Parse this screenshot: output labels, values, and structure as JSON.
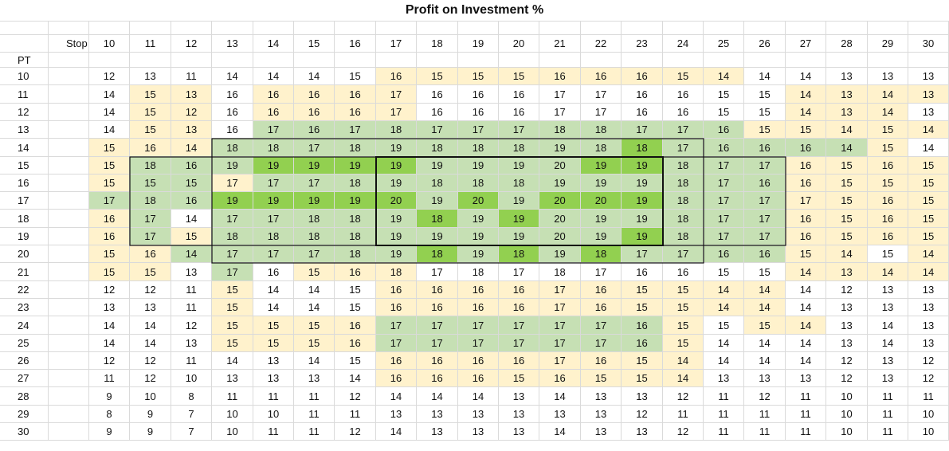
{
  "sheet": {
    "title": "Profit on Investment %",
    "stop_header": "Stop",
    "pt_header": "PT"
  },
  "palette": {
    "none": "#ffffff",
    "cream": "#fff2cc",
    "light_green": "#c6e0b4",
    "green": "#92d050",
    "grid": "#dadada"
  },
  "chart_data": {
    "type": "heatmap",
    "title": "Profit on Investment %",
    "xlabel": "Stop",
    "ylabel": "PT",
    "x": [
      10,
      11,
      12,
      13,
      14,
      15,
      16,
      17,
      18,
      19,
      20,
      21,
      22,
      23,
      24,
      25,
      26,
      27,
      28,
      29,
      30
    ],
    "y": [
      10,
      11,
      12,
      13,
      14,
      15,
      16,
      17,
      18,
      19,
      20,
      21,
      22,
      23,
      24,
      25,
      26,
      27,
      28,
      29,
      30
    ],
    "values": [
      [
        12,
        13,
        11,
        14,
        14,
        14,
        15,
        16,
        15,
        15,
        15,
        16,
        16,
        16,
        15,
        14,
        14,
        14,
        13,
        13,
        13
      ],
      [
        14,
        15,
        13,
        16,
        16,
        16,
        16,
        17,
        16,
        16,
        16,
        17,
        17,
        16,
        16,
        15,
        15,
        14,
        13,
        14,
        13
      ],
      [
        14,
        15,
        12,
        16,
        16,
        16,
        16,
        17,
        16,
        16,
        16,
        17,
        17,
        16,
        16,
        15,
        15,
        14,
        13,
        14,
        13
      ],
      [
        14,
        15,
        13,
        16,
        17,
        16,
        17,
        18,
        17,
        17,
        17,
        18,
        18,
        17,
        17,
        16,
        15,
        15,
        14,
        15,
        14
      ],
      [
        15,
        16,
        14,
        18,
        18,
        17,
        18,
        19,
        18,
        18,
        18,
        19,
        18,
        18,
        17,
        16,
        16,
        16,
        14,
        15,
        14
      ],
      [
        15,
        18,
        16,
        19,
        19,
        19,
        19,
        19,
        19,
        19,
        19,
        20,
        19,
        19,
        18,
        17,
        17,
        16,
        15,
        16,
        15
      ],
      [
        15,
        15,
        15,
        17,
        17,
        17,
        18,
        19,
        18,
        18,
        18,
        19,
        19,
        19,
        18,
        17,
        16,
        16,
        15,
        15,
        15
      ],
      [
        17,
        18,
        16,
        19,
        19,
        19,
        19,
        20,
        19,
        20,
        19,
        20,
        20,
        19,
        18,
        17,
        17,
        17,
        15,
        16,
        15
      ],
      [
        16,
        17,
        14,
        17,
        17,
        18,
        18,
        19,
        18,
        19,
        19,
        20,
        19,
        19,
        18,
        17,
        17,
        16,
        15,
        16,
        15
      ],
      [
        16,
        17,
        15,
        18,
        18,
        18,
        18,
        19,
        19,
        19,
        19,
        20,
        19,
        19,
        18,
        17,
        17,
        16,
        15,
        16,
        15
      ],
      [
        15,
        16,
        14,
        17,
        17,
        17,
        18,
        19,
        18,
        19,
        18,
        19,
        18,
        17,
        17,
        16,
        16,
        15,
        14,
        15,
        14
      ],
      [
        15,
        15,
        13,
        17,
        16,
        15,
        16,
        18,
        17,
        18,
        17,
        18,
        17,
        16,
        16,
        15,
        15,
        14,
        13,
        14,
        14
      ],
      [
        12,
        12,
        11,
        15,
        14,
        14,
        15,
        16,
        16,
        16,
        16,
        17,
        16,
        15,
        15,
        14,
        14,
        14,
        12,
        13,
        13
      ],
      [
        13,
        13,
        11,
        15,
        14,
        14,
        15,
        16,
        16,
        16,
        16,
        17,
        16,
        15,
        15,
        14,
        14,
        14,
        13,
        13,
        13
      ],
      [
        14,
        14,
        12,
        15,
        15,
        15,
        16,
        17,
        17,
        17,
        17,
        17,
        17,
        16,
        15,
        15,
        15,
        14,
        13,
        14,
        13
      ],
      [
        14,
        14,
        13,
        15,
        15,
        15,
        16,
        17,
        17,
        17,
        17,
        17,
        17,
        16,
        15,
        14,
        14,
        14,
        13,
        14,
        13
      ],
      [
        12,
        12,
        11,
        14,
        13,
        14,
        15,
        16,
        16,
        16,
        16,
        17,
        16,
        15,
        14,
        14,
        14,
        14,
        12,
        13,
        12
      ],
      [
        11,
        12,
        10,
        13,
        13,
        13,
        14,
        16,
        16,
        16,
        15,
        16,
        15,
        15,
        14,
        13,
        13,
        13,
        12,
        13,
        12
      ],
      [
        9,
        10,
        8,
        11,
        11,
        11,
        12,
        14,
        14,
        14,
        13,
        14,
        13,
        13,
        12,
        11,
        12,
        11,
        10,
        11,
        11
      ],
      [
        8,
        9,
        7,
        10,
        10,
        11,
        11,
        13,
        13,
        13,
        13,
        13,
        13,
        12,
        11,
        11,
        11,
        11,
        10,
        11,
        10
      ],
      [
        9,
        9,
        7,
        10,
        11,
        11,
        12,
        14,
        13,
        13,
        13,
        14,
        13,
        13,
        12,
        11,
        11,
        11,
        10,
        11,
        10
      ]
    ],
    "fill_codes": [
      "000000011111111100000",
      "011011110000000001111",
      "011011110000000001110",
      "011022222222222211111",
      "111222222222232222210",
      "122233332222332221111",
      "122122222222222221111",
      "222333332323332221111",
      "120222223232222221111",
      "121222222222232221111",
      "112222223232322221101",
      "110201110000000001111",
      "000100011111111110000",
      "000100011111111110000",
      "000111122222221011000",
      "000111122222221000000",
      "000000011111111000000",
      "000000011111111000000",
      "000000000000000000000",
      "000000000000000000000",
      "000000000000000000000"
    ],
    "fill_legend": [
      "none",
      "cream",
      "light_green",
      "green"
    ],
    "outlined_regions": [
      {
        "pt_from": 14,
        "pt_to": 20,
        "stop_from": 13,
        "stop_to": 24
      },
      {
        "pt_from": 15,
        "pt_to": 19,
        "stop_from": 11,
        "stop_to": 26
      },
      {
        "pt_from": 15,
        "pt_to": 19,
        "stop_from": 17,
        "stop_to": 23
      }
    ]
  }
}
